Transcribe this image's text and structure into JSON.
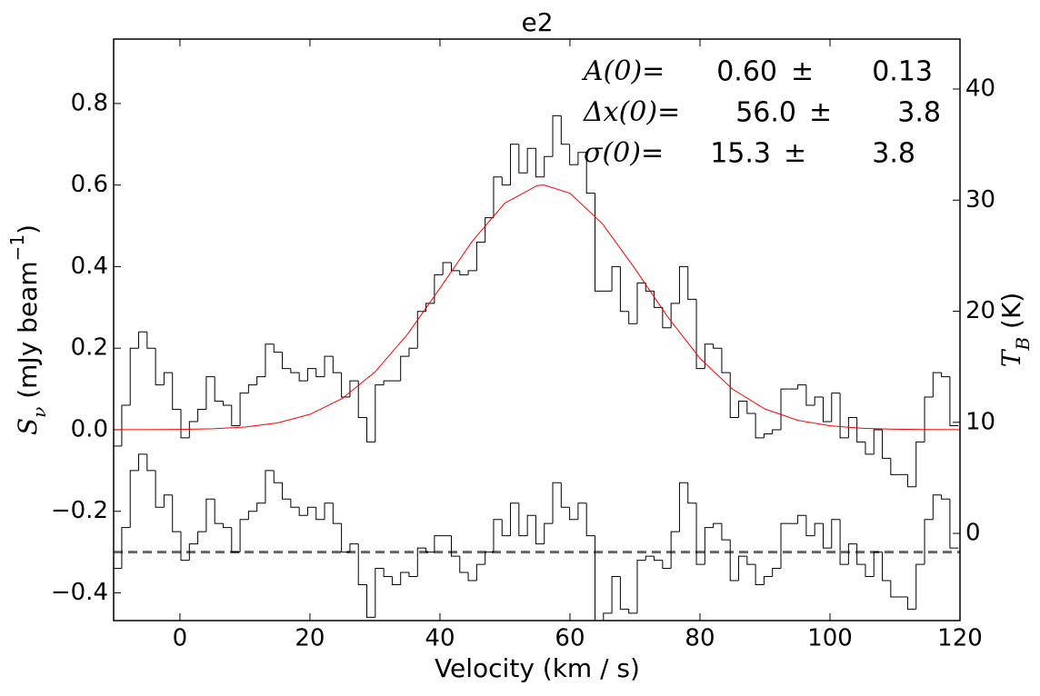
{
  "chart_data": {
    "type": "step",
    "title": "e2",
    "xlabel": "Velocity (km / s)",
    "ylabel": [
      {
        "text": "S",
        "style": "italic-serif"
      },
      {
        "text": "ν",
        "style": "italic-serif",
        "shift": "sub"
      },
      {
        "text": " (mJy beam"
      },
      {
        "text": "−1",
        "shift": "super"
      },
      {
        "text": ")"
      }
    ],
    "y2label": [
      {
        "text": "T",
        "style": "italic-serif"
      },
      {
        "text": "B",
        "style": "italic-serif",
        "shift": "sub"
      },
      {
        "text": " (K)"
      }
    ],
    "xlim": [
      -10.2,
      120
    ],
    "ylim": [
      -0.468,
      0.958
    ],
    "y2lim": [
      -7.85,
      44.5
    ],
    "xticks": [
      0,
      20,
      40,
      60,
      80,
      100,
      120
    ],
    "yticks": [
      {
        "value": -0.4,
        "label": "−0.4"
      },
      {
        "value": -0.2,
        "label": "−0.2"
      },
      {
        "value": 0,
        "label": "0.0"
      },
      0.2,
      0.4,
      0.6,
      0.8
    ],
    "y2ticks": [
      0,
      10,
      20,
      30,
      40
    ],
    "x": [
      -9.6,
      -8.3,
      -7.0,
      -5.7,
      -4.4,
      -3.1,
      -1.8,
      -0.5,
      0.8,
      2.1,
      3.4,
      4.7,
      6.0,
      7.3,
      8.6,
      9.9,
      11.2,
      12.5,
      13.8,
      15.1,
      16.4,
      17.7,
      19.0,
      20.3,
      21.6,
      22.9,
      24.2,
      25.5,
      26.8,
      28.1,
      29.4,
      30.7,
      32.0,
      33.3,
      34.6,
      35.9,
      37.2,
      38.5,
      39.8,
      41.1,
      42.4,
      43.7,
      45.0,
      46.3,
      47.6,
      48.9,
      50.2,
      51.5,
      52.8,
      54.1,
      55.4,
      56.7,
      58.0,
      59.3,
      60.6,
      61.9,
      63.2,
      64.5,
      65.8,
      67.1,
      68.4,
      69.7,
      71.0,
      72.3,
      73.6,
      74.9,
      76.2,
      77.5,
      78.8,
      80.1,
      81.4,
      82.7,
      84.0,
      85.3,
      86.6,
      87.9,
      89.2,
      90.5,
      91.8,
      93.1,
      94.4,
      95.7,
      97.0,
      98.3,
      99.6,
      100.9,
      102.2,
      103.5,
      104.8,
      106.1,
      107.4,
      108.7,
      110.0,
      111.3,
      112.6,
      113.9,
      115.2,
      116.5,
      117.8,
      119.1
    ],
    "series": [
      {
        "color": "#000000",
        "values": [
          -0.04,
          0.06,
          0.2,
          0.24,
          0.2,
          0.11,
          0.14,
          0.05,
          -0.02,
          0.02,
          0.05,
          0.13,
          0.07,
          0.06,
          0.01,
          0.09,
          0.11,
          0.13,
          0.21,
          0.19,
          0.15,
          0.14,
          0.12,
          0.15,
          0.13,
          0.18,
          0.14,
          0.08,
          0.12,
          0.03,
          -0.03,
          0.11,
          0.12,
          0.12,
          0.18,
          0.2,
          0.29,
          0.31,
          0.38,
          0.41,
          0.39,
          0.38,
          0.39,
          0.46,
          0.52,
          0.62,
          0.6,
          0.7,
          0.63,
          0.69,
          0.62,
          0.67,
          0.77,
          0.7,
          0.65,
          0.68,
          0.58,
          0.34,
          0.34,
          0.4,
          0.29,
          0.26,
          0.36,
          0.34,
          0.3,
          0.25,
          0.31,
          0.4,
          0.32,
          0.15,
          0.21,
          0.2,
          0.14,
          0.03,
          0.07,
          0.04,
          -0.02,
          -0.01,
          0.0,
          0.1,
          0.1,
          0.11,
          0.06,
          0.08,
          0.02,
          0.09,
          -0.02,
          0.03,
          -0.03,
          -0.06,
          0.0,
          -0.07,
          -0.11,
          -0.11,
          -0.14,
          -0.03,
          0.08,
          0.14,
          0.13,
          0.01
        ]
      },
      {
        "color": "#000000",
        "values": [
          -0.34,
          -0.24,
          -0.1,
          -0.06,
          -0.1,
          -0.19,
          -0.16,
          -0.25,
          -0.32,
          -0.28,
          -0.25,
          -0.17,
          -0.23,
          -0.24,
          -0.3,
          -0.22,
          -0.2,
          -0.18,
          -0.1,
          -0.13,
          -0.17,
          -0.19,
          -0.21,
          -0.19,
          -0.22,
          -0.18,
          -0.23,
          -0.3,
          -0.28,
          -0.38,
          -0.46,
          -0.34,
          -0.36,
          -0.38,
          -0.35,
          -0.36,
          -0.29,
          -0.3,
          -0.26,
          -0.26,
          -0.31,
          -0.35,
          -0.37,
          -0.33,
          -0.3,
          -0.22,
          -0.26,
          -0.18,
          -0.26,
          -0.21,
          -0.28,
          -0.23,
          -0.13,
          -0.19,
          -0.22,
          -0.18,
          -0.26,
          -0.47,
          -0.45,
          -0.36,
          -0.44,
          -0.45,
          -0.32,
          -0.31,
          -0.32,
          -0.34,
          -0.25,
          -0.13,
          -0.18,
          -0.33,
          -0.24,
          -0.23,
          -0.27,
          -0.37,
          -0.31,
          -0.33,
          -0.38,
          -0.36,
          -0.34,
          -0.23,
          -0.23,
          -0.21,
          -0.26,
          -0.23,
          -0.29,
          -0.22,
          -0.33,
          -0.28,
          -0.33,
          -0.36,
          -0.3,
          -0.37,
          -0.41,
          -0.41,
          -0.44,
          -0.33,
          -0.22,
          -0.16,
          -0.17,
          -0.29
        ]
      }
    ],
    "fit": {
      "color": "#ff0000",
      "x": [
        -10,
        -5,
        0,
        5,
        10,
        15,
        20,
        25,
        30,
        35,
        40,
        45,
        50,
        55,
        56,
        60,
        65,
        70,
        75,
        80,
        85,
        90,
        95,
        100,
        105,
        110,
        115,
        120
      ],
      "values": [
        0.0001,
        0.0002,
        0.0007,
        0.0023,
        0.0065,
        0.0166,
        0.0377,
        0.077,
        0.1416,
        0.234,
        0.347,
        0.463,
        0.556,
        0.599,
        0.6,
        0.58,
        0.505,
        0.395,
        0.2775,
        0.175,
        0.0996,
        0.0508,
        0.0233,
        0.0096,
        0.0036,
        0.0012,
        0.0004,
        0.0001
      ]
    },
    "hline": {
      "value": -0.3,
      "color": "#666666",
      "style": "dashed"
    },
    "annotations": [
      {
        "label": "A(0)=",
        "value": "0.60",
        "sign": "±",
        "error": "0.13"
      },
      {
        "label": "Δx(0)=",
        "value": "56.0",
        "sign": "±",
        "error": "3.8"
      },
      {
        "label": "σ(0)=",
        "value": "15.3",
        "sign": "±",
        "error": "3.8"
      }
    ]
  }
}
